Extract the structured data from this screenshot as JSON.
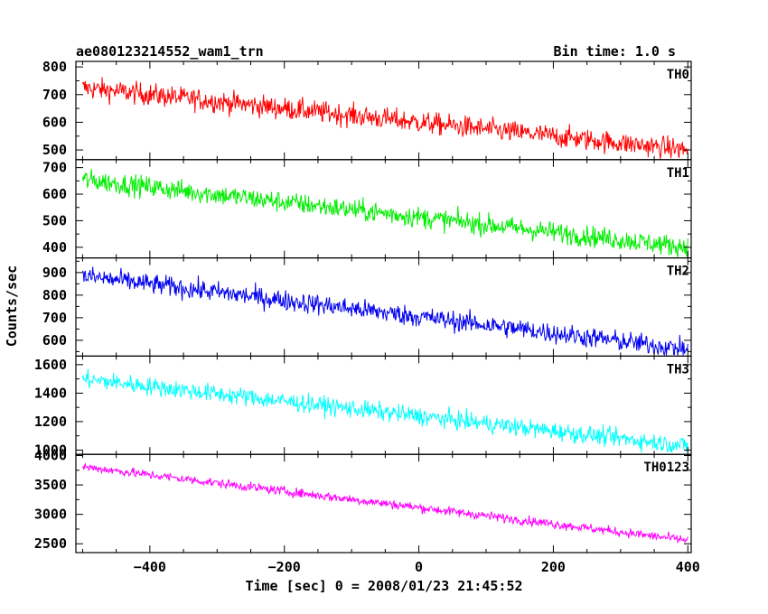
{
  "header": {
    "title": "ae080123214552_wam1_trn",
    "bin_time": "Bin time: 1.0 s"
  },
  "chart_data": {
    "type": "line",
    "xlabel": "Time [sec] 0 = 2008/01/23 21:45:52",
    "ylabel": "Counts/sec",
    "xlim": [
      -510,
      405
    ],
    "xticks": [
      -400,
      -200,
      0,
      200,
      400
    ],
    "x_range": [
      -500,
      400
    ],
    "panels": [
      {
        "name": "TH0",
        "color": "#ff0000",
        "ylim": [
          465,
          820
        ],
        "yticks": [
          500,
          600,
          700,
          800
        ],
        "start_level": 725,
        "end_level": 500,
        "noise": 28
      },
      {
        "name": "TH1",
        "color": "#00ee00",
        "ylim": [
          360,
          730
        ],
        "yticks": [
          400,
          500,
          600,
          700
        ],
        "start_level": 655,
        "end_level": 400,
        "noise": 28
      },
      {
        "name": "TH2",
        "color": "#0000ee",
        "ylim": [
          530,
          965
        ],
        "yticks": [
          600,
          700,
          800,
          900
        ],
        "start_level": 885,
        "end_level": 560,
        "noise": 32
      },
      {
        "name": "TH3",
        "color": "#00ffff",
        "ylim": [
          970,
          1660
        ],
        "yticks": [
          1000,
          1200,
          1400,
          1600
        ],
        "start_level": 1500,
        "end_level": 1030,
        "noise": 45
      },
      {
        "name": "TH0123",
        "color": "#ff00ff",
        "ylim": [
          2350,
          4020
        ],
        "yticks": [
          2500,
          3000,
          3500,
          4000
        ],
        "start_level": 3810,
        "end_level": 2560,
        "noise": 55
      }
    ]
  }
}
